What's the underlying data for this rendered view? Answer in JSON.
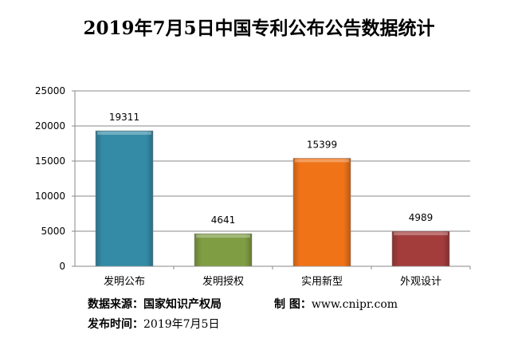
{
  "chart_data": {
    "type": "bar",
    "title": "2019年7月5日中国专利公布公告数据统计",
    "categories": [
      "发明公布",
      "发明授权",
      "实用新型",
      "外观设计"
    ],
    "values": [
      19311,
      4641,
      15399,
      4989
    ],
    "colors": [
      "#348ba6",
      "#7f9d43",
      "#f07318",
      "#a33d3c"
    ],
    "ylim": [
      0,
      25000
    ],
    "yticks": [
      0,
      5000,
      10000,
      15000,
      20000,
      25000
    ],
    "grid": true,
    "xlabel": "",
    "ylabel": ""
  },
  "footer": {
    "source_label": "数据来源：",
    "source_value": "国家知识产权局",
    "maker_label": "制 图：",
    "maker_value": "www.cnipr.com",
    "date_label": "发布时间：",
    "date_value": "2019年7月5日"
  }
}
